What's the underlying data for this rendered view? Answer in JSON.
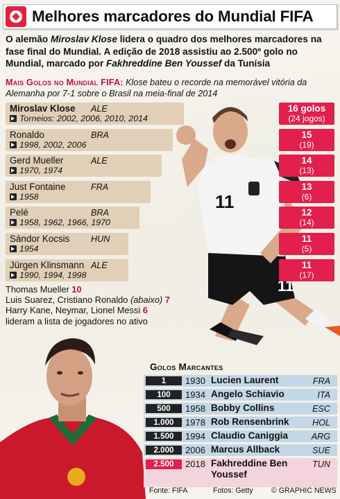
{
  "header": {
    "title": "Melhores marcadores do Mundial FIFA"
  },
  "intro": {
    "p1": "O alemão ",
    "p1_name": "Miroslav Klose",
    "p2": " lidera o quadro dos melhores marcadores na fase final do Mundial. A edição de 2018 assistiu ao 2.500º golo no Mundial, marcado por ",
    "p2_name": "Fakhreddine Ben Youssef",
    "p3": " da Tunísia"
  },
  "subhead": {
    "label": "Mais Golos no Mundial FIFA:",
    "text": " Klose bateu o recorde na memorável vitória da Alemanha por 7-1 sobre o Brasil na meia-final de 2014"
  },
  "scorers": [
    {
      "name": "Miroslav Klose",
      "country": "ALE",
      "years": "Torneios: 2002, 2006, 2010, 2014",
      "goals": "16 golos",
      "games": "(24 jogos)"
    },
    {
      "name": "Ronaldo",
      "country": "BRA",
      "years": "1998, 2002, 2006",
      "goals": "15",
      "games": "(19)"
    },
    {
      "name": "Gerd Mueller",
      "country": "ALE",
      "years": "1970, 1974",
      "goals": "14",
      "games": "(13)"
    },
    {
      "name": "Just Fontaine",
      "country": "FRA",
      "years": "1958",
      "goals": "13",
      "games": "(6)"
    },
    {
      "name": "Pelé",
      "country": "BRA",
      "years": "1958, 1962, 1966, 1970",
      "goals": "12",
      "games": "(14)"
    },
    {
      "name": "Sándor Kocsis",
      "country": "HUN",
      "years": "1954",
      "goals": "11",
      "games": "(5)"
    },
    {
      "name": "Jürgen Klinsmann",
      "country": "ALE",
      "years": "1990, 1994, 1998",
      "goals": "11",
      "games": "(17)"
    }
  ],
  "others": {
    "l1_name": "Thomas Mueller ",
    "l1_num": "10",
    "l2_name": "Luis Suarez, Cristiano Ronaldo ",
    "l2_note": "(abaixo)",
    "l2_num": " 7",
    "l3_name": "Harry Kane, Neymar, Lionel Messi ",
    "l3_num": "6",
    "l4": "lideram a lista de jogadores no ativo"
  },
  "milestones_title": "Golos Marcantes",
  "milestones": [
    {
      "num": "1",
      "year": "1930",
      "name": "Lucien Laurent",
      "country": "FRA"
    },
    {
      "num": "100",
      "year": "1934",
      "name": "Angelo Schiavio",
      "country": "ITA"
    },
    {
      "num": "500",
      "year": "1958",
      "name": "Bobby Collins",
      "country": "ESC"
    },
    {
      "num": "1.000",
      "year": "1978",
      "name": "Rob Rensenbrink",
      "country": "HOL"
    },
    {
      "num": "1.500",
      "year": "1994",
      "name": "Claudio Caniggia",
      "country": "ARG"
    },
    {
      "num": "2.000",
      "year": "2006",
      "name": "Marcus Allback",
      "country": "SUE"
    },
    {
      "num": "2.500",
      "year": "2018",
      "name": "Fakhreddine Ben Youssef",
      "country": "TUN"
    }
  ],
  "footer": {
    "source": "Fonte: FIFA",
    "photos": "Fotos: Getty",
    "credit": "© GRAPHIC NEWS"
  },
  "colors": {
    "accent": "#e21f4d",
    "bar": "#e1cfb7",
    "milestone_bar": "#c3d7e6"
  }
}
